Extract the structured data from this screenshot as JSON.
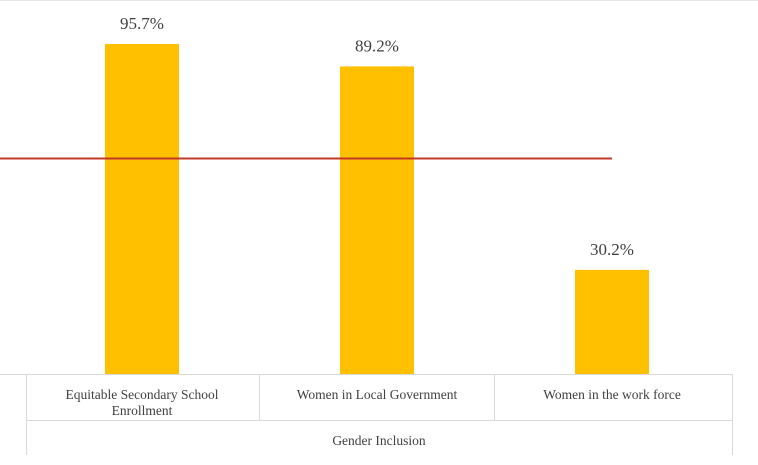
{
  "chart_data": {
    "type": "bar",
    "categories": [
      [
        "Equitable Secondary School",
        "Enrollment"
      ],
      [
        "Women in Local Government"
      ],
      [
        "Women in the work force"
      ]
    ],
    "values": [
      95.7,
      89.2,
      30.2
    ],
    "data_labels": [
      "95.7%",
      "89.2%",
      "30.2%"
    ],
    "group_label": "Gender Inclusion",
    "reference_line": 62.5,
    "ylim": [
      0,
      100
    ],
    "title": "",
    "xlabel": "",
    "ylabel": "",
    "grid": false,
    "colors": {
      "bar": "#ffc000",
      "reference_line": "#c0392b",
      "axis": "#d9d9d9",
      "text": "#404040"
    }
  }
}
